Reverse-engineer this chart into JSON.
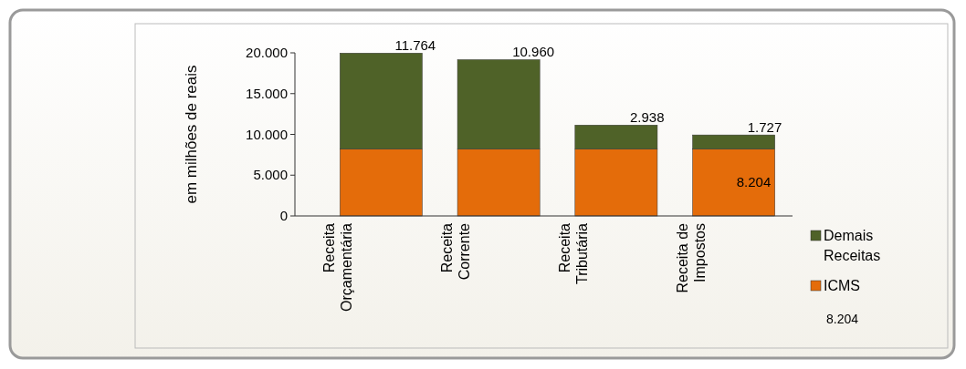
{
  "chart_data": {
    "type": "bar",
    "stacked": true,
    "ylabel": "em milhões de reais",
    "categories": [
      "Receita Orçamentária",
      "Receita Corrente",
      "Receita Tributária",
      "Receita de Impostos"
    ],
    "series": [
      {
        "name": "ICMS",
        "color": "#e46c0a",
        "values": [
          8204,
          8204,
          8204,
          8204
        ],
        "value_labels": [
          null,
          null,
          null,
          "8.204"
        ]
      },
      {
        "name": "Demais Receitas",
        "color": "#4f6228",
        "values": [
          11764,
          10960,
          2938,
          1727
        ],
        "value_labels": [
          "11.764",
          "10.960",
          "2.938",
          "1.727"
        ]
      }
    ],
    "ylim": [
      0,
      20000
    ],
    "yticks": [
      {
        "value": 0,
        "label": "0"
      },
      {
        "value": 5000,
        "label": "5.000"
      },
      {
        "value": 10000,
        "label": "10.000"
      },
      {
        "value": 15000,
        "label": "15.000"
      },
      {
        "value": 20000,
        "label": "20.000"
      }
    ],
    "grid": false,
    "legend": "right",
    "annotations": [
      "8.204"
    ]
  }
}
